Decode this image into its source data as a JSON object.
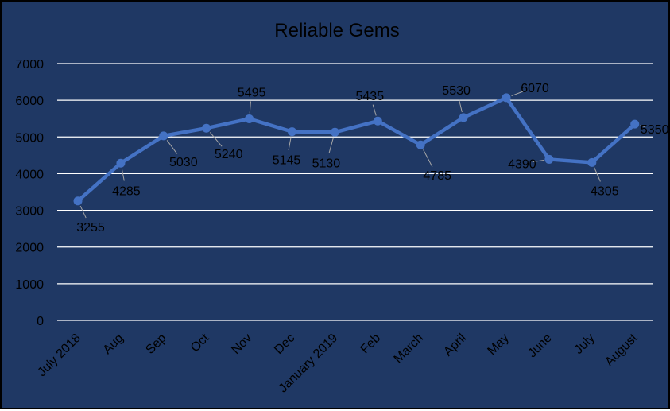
{
  "chart_data": {
    "type": "line",
    "title": "Reliable Gems",
    "xlabel": "",
    "ylabel": "",
    "categories": [
      "July 2018",
      "Aug",
      "Sep",
      "Oct",
      "Nov",
      "Dec",
      "January 2019",
      "Feb",
      "March",
      "April",
      "May",
      "June",
      "July",
      "August"
    ],
    "series": [
      {
        "values": [
          3255,
          4285,
          5030,
          5240,
          5495,
          5145,
          5130,
          5435,
          4785,
          5530,
          6070,
          4390,
          4305,
          5350
        ]
      }
    ],
    "ylim": [
      0,
      7000
    ],
    "yticks": [
      0,
      1000,
      2000,
      3000,
      4000,
      5000,
      6000,
      7000
    ],
    "grid": true,
    "legend": "none",
    "data_labels": true,
    "colors": {
      "background": "#1f3864",
      "line": "#4472c4",
      "gridline": "#ffffff",
      "text": "#000000",
      "border": "#000000"
    }
  }
}
